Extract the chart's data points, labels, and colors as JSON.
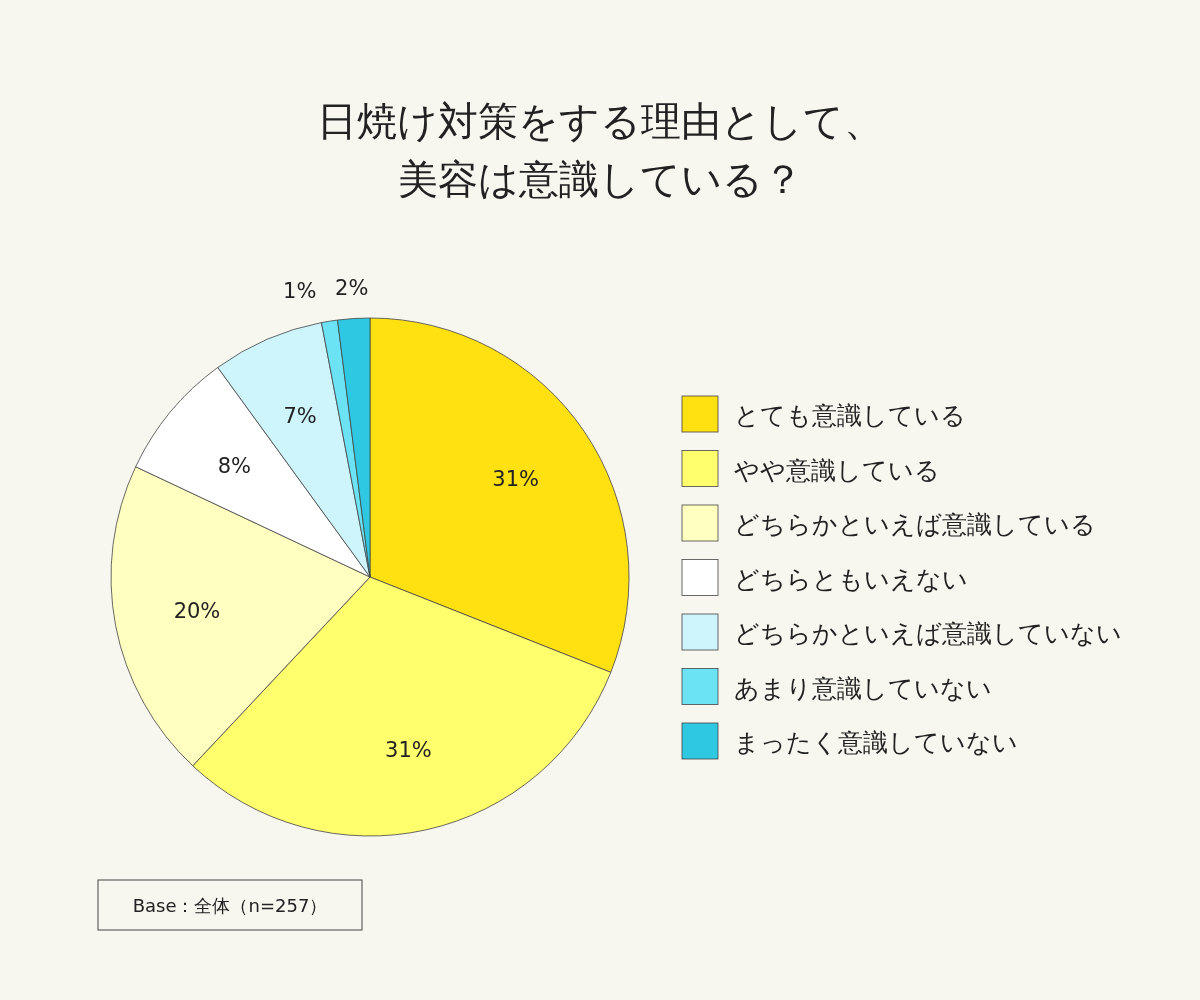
{
  "chart_data": {
    "type": "pie",
    "title": "日焼け対策をする理由として、美容は意識している？",
    "categories": [
      "とても意識している",
      "やや意識している",
      "どちらかといえば意識している",
      "どちらともいえない",
      "どちらかといえば意識していない",
      "あまり意識していない",
      "まったく意識していない"
    ],
    "values": [
      31,
      31,
      20,
      8,
      7,
      1,
      2
    ],
    "colors": [
      "#ffe010",
      "#ffff6e",
      "#ffffc0",
      "#ffffff",
      "#cdf5fb",
      "#6ce3f5",
      "#2ec8e3"
    ],
    "value_labels": [
      "31%",
      "31%",
      "20%",
      "8%",
      "7%",
      "1%",
      "2%"
    ],
    "legend": "right",
    "annotations": [
      "Base：全体（n=257）"
    ]
  }
}
